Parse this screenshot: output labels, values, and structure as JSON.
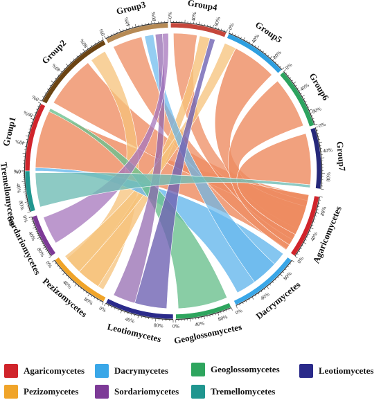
{
  "chart_data": {
    "type": "chord",
    "top_groups": [
      {
        "name": "Group1",
        "color": "#d0242b"
      },
      {
        "name": "Group2",
        "color": "#6b4413"
      },
      {
        "name": "Group3",
        "color": "#b68a55"
      },
      {
        "name": "Group4",
        "color": "#c5463b"
      },
      {
        "name": "Group5",
        "color": "#2e9fe0"
      },
      {
        "name": "Group6",
        "color": "#2ca35f"
      },
      {
        "name": "Group7",
        "color": "#252879"
      }
    ],
    "classes": [
      {
        "name": "Agaricomycetes",
        "color": "#d0242b"
      },
      {
        "name": "Dacrymycetes",
        "color": "#3aa7e8"
      },
      {
        "name": "Geoglossomycetes",
        "color": "#2ea55e"
      },
      {
        "name": "Leotiomycetes",
        "color": "#2a2a8a"
      },
      {
        "name": "Pezizomycetes",
        "color": "#f0a429"
      },
      {
        "name": "Sordariomycetes",
        "color": "#7d3a97"
      },
      {
        "name": "Tremellomycetes",
        "color": "#20968f"
      }
    ],
    "tick_labels": [
      "0%",
      "40%",
      "80%"
    ],
    "legend_position": "bottom"
  }
}
